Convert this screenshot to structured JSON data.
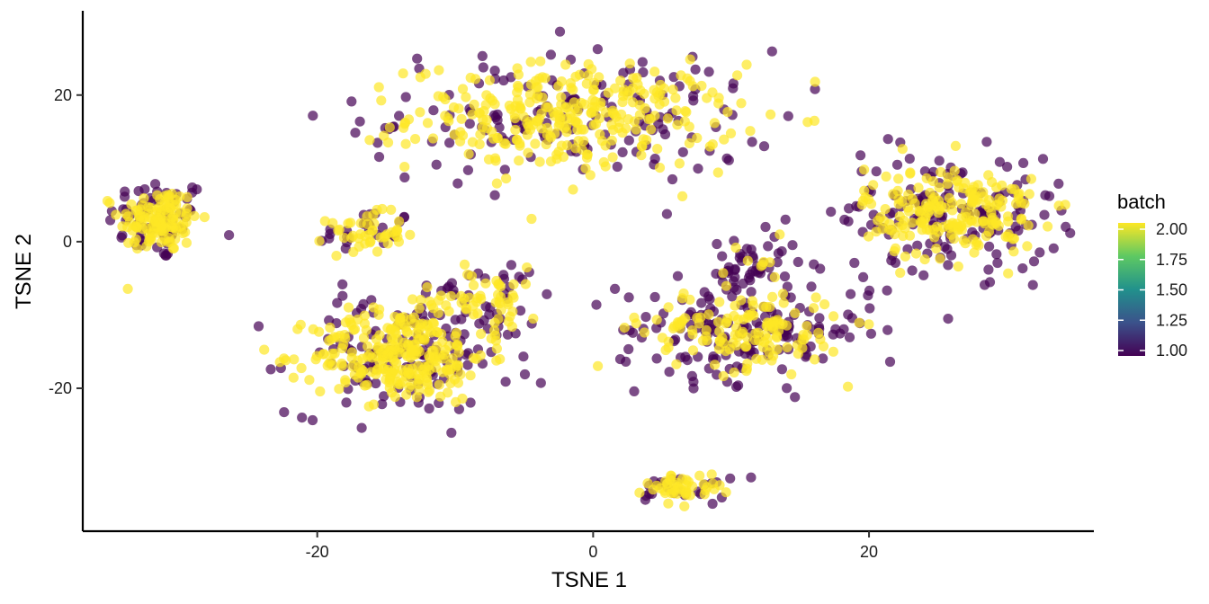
{
  "chart_data": {
    "type": "scatter",
    "xlabel": "TSNE 1",
    "ylabel": "TSNE 2",
    "xlim": [
      -37,
      36.3
    ],
    "ylim": [
      -39.5,
      31.5
    ],
    "x_ticks": [
      -20,
      0,
      20
    ],
    "x_tick_labels": [
      "-20",
      "0",
      "20"
    ],
    "y_ticks": [
      -20,
      0,
      20
    ],
    "y_tick_labels": [
      "-20",
      "0",
      "20"
    ],
    "grid": false,
    "legend": {
      "title": "batch",
      "placement": "right",
      "type": "colorbar",
      "min": 1.0,
      "max": 2.0,
      "ticks": [
        1.0,
        1.25,
        1.5,
        1.75,
        2.0
      ],
      "tick_labels": [
        "1.00",
        "1.25",
        "1.50",
        "1.75",
        "2.00"
      ],
      "colors": [
        "#440154",
        "#3b528b",
        "#21918c",
        "#5ec962",
        "#fde725"
      ]
    },
    "point_opacity": 0.7,
    "clusters": [
      {
        "cx": -31.5,
        "cy": 3,
        "sx": 1.6,
        "sy": 2.5,
        "n1": 70,
        "n2": 120
      },
      {
        "cx": -16.5,
        "cy": 1.2,
        "sx": 1.5,
        "sy": 1.5,
        "n1": 25,
        "n2": 45
      },
      {
        "cx": -1.5,
        "cy": 17,
        "sx": 6.5,
        "sy": 4,
        "n1": 160,
        "n2": 300
      },
      {
        "cx": -14,
        "cy": -15.5,
        "sx": 3.5,
        "sy": 3.5,
        "n1": 130,
        "n2": 260
      },
      {
        "cx": -8,
        "cy": -8,
        "sx": 2.5,
        "sy": 2.5,
        "n1": 40,
        "n2": 60
      },
      {
        "cx": 11,
        "cy": -12,
        "sx": 4,
        "sy": 3,
        "n1": 170,
        "n2": 140
      },
      {
        "cx": 11.5,
        "cy": -3.5,
        "sx": 1.5,
        "sy": 2,
        "n1": 45,
        "n2": 8
      },
      {
        "cx": 26,
        "cy": 4,
        "sx": 3.5,
        "sy": 3.5,
        "n1": 160,
        "n2": 200
      },
      {
        "cx": 6.5,
        "cy": -33.5,
        "sx": 1.5,
        "sy": 1,
        "n1": 25,
        "n2": 45
      }
    ]
  }
}
